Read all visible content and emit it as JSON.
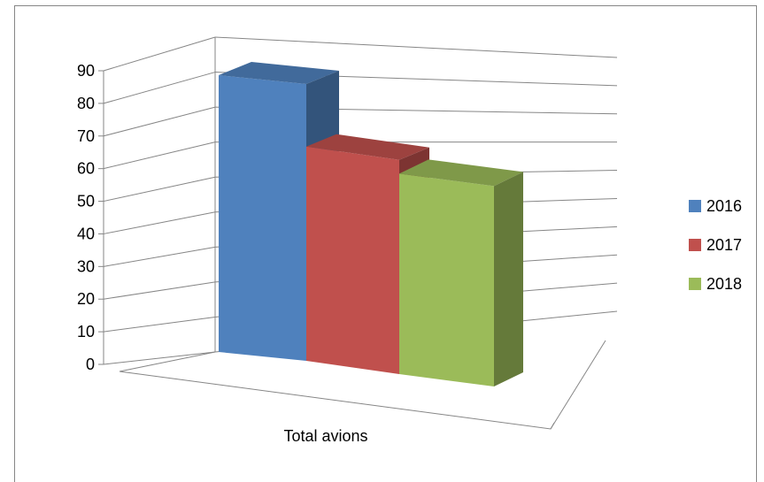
{
  "chart_data": {
    "type": "bar",
    "style": "3d-clustered-column",
    "categories": [
      "Total avions"
    ],
    "series": [
      {
        "name": "2016",
        "values": [
          88
        ],
        "color": "#4F81BD"
      },
      {
        "name": "2017",
        "values": [
          66
        ],
        "color": "#C0504D"
      },
      {
        "name": "2018",
        "values": [
          59
        ],
        "color": "#9BBB59"
      }
    ],
    "ylim": [
      0,
      90
    ],
    "yticks": [
      "0",
      "10",
      "20",
      "30",
      "40",
      "50",
      "60",
      "70",
      "80",
      "90"
    ],
    "grid": true,
    "legend_position": "right"
  }
}
